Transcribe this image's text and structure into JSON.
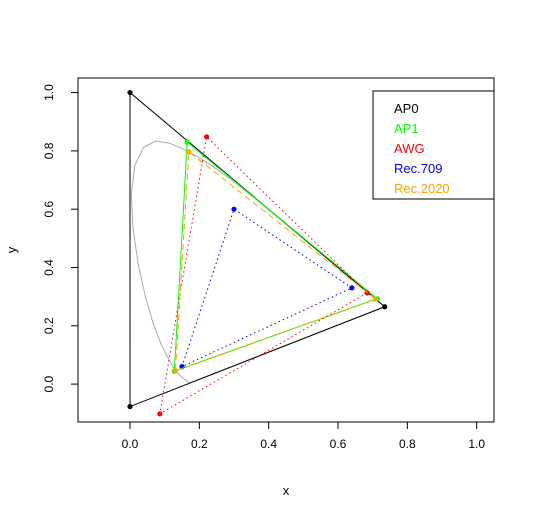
{
  "chart_data": {
    "type": "scatter",
    "title": "",
    "xlabel": "x",
    "ylabel": "y",
    "xlim": [
      -0.15,
      1.05
    ],
    "ylim": [
      -0.13,
      1.05
    ],
    "x_ticks": [
      "0.0",
      "0.2",
      "0.4",
      "0.6",
      "0.8",
      "1.0"
    ],
    "y_ticks": [
      "0.0",
      "0.2",
      "0.4",
      "0.6",
      "0.8",
      "1.0"
    ],
    "grid": false,
    "legend_position": "top-right",
    "series": [
      {
        "name": "AP0",
        "color": "#000000",
        "line": "solid",
        "points": [
          [
            0.7347,
            0.2653
          ],
          [
            0.0,
            1.0
          ],
          [
            0.0001,
            -0.077
          ]
        ]
      },
      {
        "name": "AP1",
        "color": "#00ff00",
        "line": "solid",
        "points": [
          [
            0.713,
            0.293
          ],
          [
            0.165,
            0.83
          ],
          [
            0.128,
            0.044
          ]
        ]
      },
      {
        "name": "AWG",
        "color": "#ff0000",
        "line": "dotted",
        "points": [
          [
            0.684,
            0.313
          ],
          [
            0.221,
            0.848
          ],
          [
            0.0861,
            -0.102
          ]
        ]
      },
      {
        "name": "Rec.709",
        "color": "#0000ff",
        "line": "dotted",
        "points": [
          [
            0.64,
            0.33
          ],
          [
            0.3,
            0.6
          ],
          [
            0.15,
            0.06
          ]
        ]
      },
      {
        "name": "Rec.2020",
        "color": "#ffa500",
        "line": "dashed",
        "points": [
          [
            0.708,
            0.292
          ],
          [
            0.17,
            0.797
          ],
          [
            0.131,
            0.046
          ]
        ]
      }
    ],
    "spectral_locus": {
      "color": "#aaaaaa",
      "points": [
        [
          0.1741,
          0.005
        ],
        [
          0.1738,
          0.0049
        ],
        [
          0.1736,
          0.0049
        ],
        [
          0.173,
          0.0048
        ],
        [
          0.1714,
          0.0051
        ],
        [
          0.1689,
          0.0069
        ],
        [
          0.1644,
          0.0109
        ],
        [
          0.1566,
          0.0177
        ],
        [
          0.144,
          0.0297
        ],
        [
          0.1241,
          0.0578
        ],
        [
          0.0913,
          0.1327
        ],
        [
          0.0687,
          0.2007
        ],
        [
          0.0454,
          0.295
        ],
        [
          0.0235,
          0.4127
        ],
        [
          0.0082,
          0.5384
        ],
        [
          0.0039,
          0.6548
        ],
        [
          0.0139,
          0.7502
        ],
        [
          0.0389,
          0.812
        ],
        [
          0.0743,
          0.8338
        ],
        [
          0.1142,
          0.8262
        ],
        [
          0.1547,
          0.8059
        ],
        [
          0.1929,
          0.7816
        ],
        [
          0.2296,
          0.7543
        ],
        [
          0.2658,
          0.7243
        ],
        [
          0.3016,
          0.6923
        ],
        [
          0.3373,
          0.6589
        ],
        [
          0.3731,
          0.6245
        ],
        [
          0.4087,
          0.5896
        ],
        [
          0.4441,
          0.5547
        ],
        [
          0.4788,
          0.5202
        ],
        [
          0.5125,
          0.4866
        ],
        [
          0.5448,
          0.4544
        ],
        [
          0.5752,
          0.4242
        ],
        [
          0.6029,
          0.3965
        ],
        [
          0.627,
          0.3725
        ],
        [
          0.6482,
          0.3514
        ],
        [
          0.6658,
          0.334
        ],
        [
          0.6801,
          0.3197
        ],
        [
          0.6915,
          0.3083
        ],
        [
          0.7006,
          0.2993
        ],
        [
          0.7079,
          0.292
        ],
        [
          0.714,
          0.2859
        ],
        [
          0.719,
          0.2809
        ],
        [
          0.723,
          0.277
        ],
        [
          0.726,
          0.274
        ],
        [
          0.7283,
          0.2717
        ],
        [
          0.73,
          0.27
        ],
        [
          0.7311,
          0.2689
        ],
        [
          0.732,
          0.268
        ],
        [
          0.7327,
          0.2673
        ],
        [
          0.7334,
          0.2666
        ],
        [
          0.734,
          0.266
        ],
        [
          0.7344,
          0.2656
        ],
        [
          0.7346,
          0.2654
        ],
        [
          0.7347,
          0.2653
        ]
      ]
    }
  }
}
